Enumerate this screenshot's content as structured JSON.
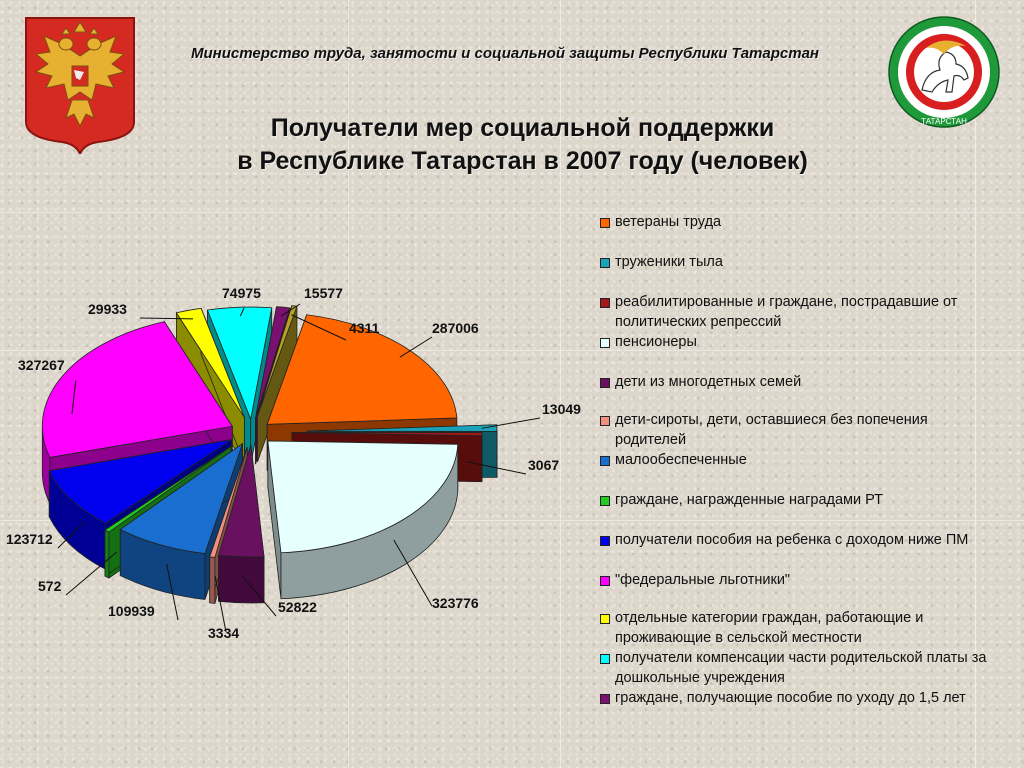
{
  "header": {
    "ministry": "Министерство  труда,  занятости и социальной защиты Республики Татарстан"
  },
  "emblems": {
    "left": "coat-of-arms-russia-icon",
    "right": "coat-of-arms-tatarstan-icon",
    "right_ring_text": "ТАТАРСТАН"
  },
  "chart_data": {
    "type": "pie",
    "style": "3d-exploded",
    "title": "Получатели мер социальной поддержки в Республике Татарстан в 2007 году (человек)",
    "title_lines": [
      "Получатели мер социальной поддержки",
      "в Республике Татарстан в 2007 году (человек)"
    ],
    "legend_position": "right",
    "series": [
      {
        "name": "ветераны труда",
        "value": 287006,
        "color": "#ff6600"
      },
      {
        "name": "труженики тыла",
        "value": 13049,
        "color": "#1aa3b8"
      },
      {
        "name": "реабилитированные и граждане, пострадавшие от политических репрессий",
        "value": 3067,
        "color": "#a01818"
      },
      {
        "name": "пенсионеры",
        "value": 323776,
        "color": "#e6ffff"
      },
      {
        "name": "дети из многодетных семей",
        "value": 52822,
        "color": "#6a1060"
      },
      {
        "name": "дети-сироты, дети, оставшиеся без попечения родителей",
        "value": 3334,
        "color": "#f09080"
      },
      {
        "name": "малообеспеченные",
        "value": 109939,
        "color": "#1a6ed0"
      },
      {
        "name": "граждане, награжденные наградами РТ",
        "value": 572,
        "color": "#22cc22"
      },
      {
        "name": "получатели пособия на ребенка с доходом ниже ПМ",
        "value": 123712,
        "color": "#0000ee"
      },
      {
        "name": "\"федеральные льготники\"",
        "value": 327267,
        "color": "#ff00ff"
      },
      {
        "name": "отдельные категории граждан, работающие и проживающие в сельской местности",
        "value": 29933,
        "color": "#ffff00"
      },
      {
        "name": "получатели компенсации части родительской платы за дошкольные учреждения",
        "value": 74975,
        "color": "#00ffff"
      },
      {
        "name": "граждане, получающие пособие по уходу до 1,5 лет",
        "value": 15577,
        "color": "#7a1070"
      },
      {
        "name": "",
        "value": 4311,
        "color": "#b8a020"
      }
    ],
    "legend": [
      "ветераны труда",
      "труженики тыла",
      "реабилитированные и граждане, пострадавшие от политических репрессий",
      "пенсионеры",
      "дети из многодетных семей",
      "дети-сироты, дети, оставшиеся без попечения родителей",
      "малообеспеченные",
      "граждане, награжденные наградами РТ",
      "получатели пособия на ребенка с доходом ниже ПМ",
      "\"федеральные льготники\"",
      "отдельные категории граждан, работающие и проживающие в сельской местности",
      "получатели компенсации части родительской платы за дошкольные учреждения",
      "граждане, получающие пособие по уходу до 1,5 лет"
    ],
    "legend_colors": [
      "#ff6600",
      "#1aa3b8",
      "#a01818",
      "#e6ffff",
      "#6a1060",
      "#f09080",
      "#1a6ed0",
      "#22cc22",
      "#0000ee",
      "#ff00ff",
      "#ffff00",
      "#00ffff",
      "#7a1070"
    ],
    "data_labels": [
      "287006",
      "13049",
      "3067",
      "323776",
      "52822",
      "3334",
      "109939",
      "572",
      "123712",
      "327267",
      "29933",
      "74975",
      "15577",
      "4311"
    ]
  }
}
